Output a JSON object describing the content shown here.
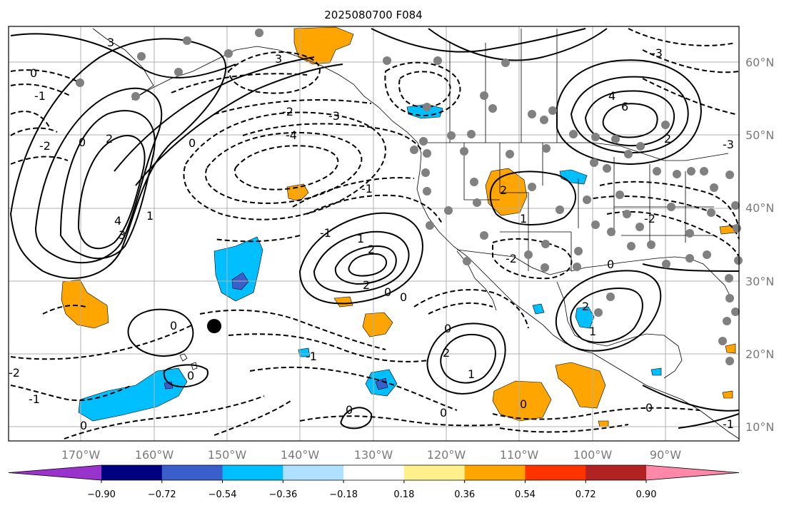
{
  "title": "2025080700 F084",
  "lat_labels": [
    "60°N",
    "50°N",
    "40°N",
    "30°N",
    "20°N",
    "10°N"
  ],
  "lon_labels": [
    "170°W",
    "160°W",
    "150°W",
    "140°W",
    "130°W",
    "120°W",
    "110°W",
    "100°W",
    "90°W"
  ],
  "colorbar": {
    "colors": [
      "#9933cc",
      "#000080",
      "#3a5fcd",
      "#00bfff",
      "#b0e0ff",
      "#ffffff",
      "#fff08c",
      "#ffa500",
      "#ff3300",
      "#b22222",
      "#ff88aa"
    ],
    "ticks": [
      "−0.90",
      "−0.72",
      "−0.54",
      "−0.36",
      "−0.18",
      "0.18",
      "0.36",
      "0.54",
      "0.72",
      "0.90"
    ]
  },
  "contour_labels": [
    "3",
    "4",
    "6",
    "2",
    "1",
    "0",
    "-1",
    "-2",
    "-3",
    "-4"
  ],
  "colors": {
    "land_line": "#000000",
    "grid": "#b0b0b0",
    "station": "#808080",
    "marker": "#000000"
  }
}
